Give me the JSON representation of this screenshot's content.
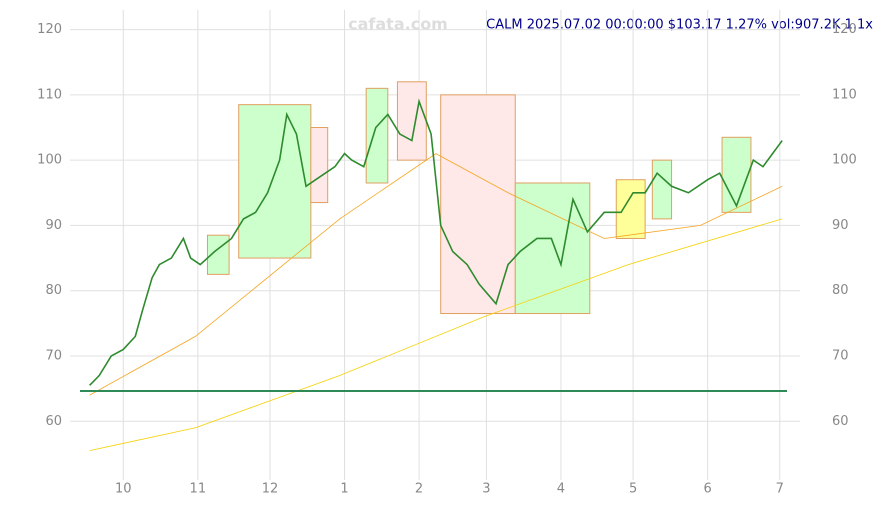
{
  "chart_data": {
    "type": "line",
    "watermark": "cafata.com",
    "info": "CALM 2025.07.02 00:00:00 $103.17 1.27% vol:907.2K 1.1x",
    "xlim": [
      -18,
      276
    ],
    "ylim": [
      51,
      123
    ],
    "xticks": [
      {
        "value": 0,
        "label": "10"
      },
      {
        "value": 31,
        "label": "11"
      },
      {
        "value": 61,
        "label": "12"
      },
      {
        "value": 92,
        "label": "1"
      },
      {
        "value": 123,
        "label": "2"
      },
      {
        "value": 151,
        "label": "3"
      },
      {
        "value": 182,
        "label": "4"
      },
      {
        "value": 212,
        "label": "5"
      },
      {
        "value": 243,
        "label": "6"
      },
      {
        "value": 273,
        "label": "7"
      }
    ],
    "yticks": [
      60,
      70,
      80,
      90,
      100,
      110,
      120
    ],
    "grid": true,
    "zones": [
      {
        "x": [
          35,
          44
        ],
        "y": [
          82.5,
          88.5
        ],
        "color": "#ccffcc"
      },
      {
        "x": [
          48,
          78
        ],
        "y": [
          85,
          108.5
        ],
        "color": "#ccffcc"
      },
      {
        "x": [
          78,
          85
        ],
        "y": [
          93.5,
          105
        ],
        "color": "#ffe8e8"
      },
      {
        "x": [
          101,
          110
        ],
        "y": [
          96.5,
          111
        ],
        "color": "#ccffcc"
      },
      {
        "x": [
          114,
          126
        ],
        "y": [
          100,
          112
        ],
        "color": "#ffe8e8"
      },
      {
        "x": [
          132,
          163
        ],
        "y": [
          76.5,
          110
        ],
        "color": "#ffe8e8"
      },
      {
        "x": [
          163,
          194
        ],
        "y": [
          76.5,
          96.5
        ],
        "color": "#ccffcc"
      },
      {
        "x": [
          205,
          217
        ],
        "y": [
          88,
          97
        ],
        "color": "#ffff99"
      },
      {
        "x": [
          220,
          228
        ],
        "y": [
          91,
          100
        ],
        "color": "#ccffcc"
      },
      {
        "x": [
          249,
          261
        ],
        "y": [
          92,
          103.5
        ],
        "color": "#ccffcc"
      }
    ],
    "series": [
      {
        "color": "#f5d000",
        "width": 0.8,
        "x": [
          -14,
          30,
          90,
          150,
          210,
          274
        ],
        "values": [
          55.5,
          59,
          67,
          76,
          84,
          91
        ]
      },
      {
        "color": "#f5a623",
        "width": 0.8,
        "x": [
          -14,
          30,
          90,
          130,
          160,
          200,
          240,
          274
        ],
        "values": [
          64,
          73,
          91,
          101,
          95,
          88,
          90,
          96
        ]
      },
      {
        "color": "#2e8b2e",
        "width": 1.6,
        "x": [
          -14,
          -10,
          -5,
          0,
          5,
          8,
          12,
          15,
          20,
          25,
          28,
          32,
          38,
          45,
          50,
          55,
          60,
          65,
          68,
          72,
          76,
          80,
          88,
          92,
          95,
          100,
          105,
          110,
          115,
          120,
          123,
          128,
          132,
          137,
          143,
          148,
          155,
          160,
          165,
          172,
          178,
          182,
          187,
          193,
          200,
          207,
          212,
          217,
          222,
          228,
          235,
          243,
          248,
          255,
          262,
          266,
          270,
          274
        ],
        "values": [
          65.5,
          67,
          70,
          71,
          73,
          77,
          82,
          84,
          85,
          88,
          85,
          84,
          86,
          88,
          91,
          92,
          95,
          100,
          107,
          104,
          96,
          97,
          99,
          101,
          100,
          99,
          105,
          107,
          104,
          103,
          109,
          104,
          90,
          86,
          84,
          81,
          78,
          84,
          86,
          88,
          88,
          84,
          94,
          89,
          92,
          92,
          95,
          95,
          98,
          96,
          95,
          97,
          98,
          93,
          100,
          99,
          101,
          103
        ]
      }
    ]
  }
}
